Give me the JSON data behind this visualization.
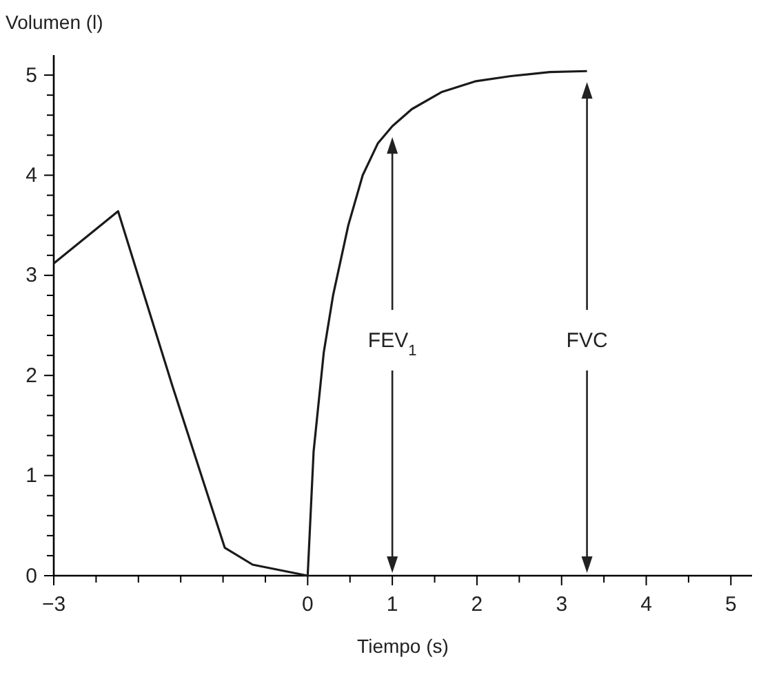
{
  "chart_data": {
    "type": "line",
    "xlabel": "Tiempo (s)",
    "ylabel": "Volumen (l)",
    "x": [
      -3,
      -2.24,
      -1.6,
      -0.98,
      -0.65,
      0,
      0.07,
      0.19,
      0.3,
      0.48,
      0.65,
      0.83,
      1.0,
      1.23,
      1.58,
      1.99,
      2.4,
      2.86,
      3.3
    ],
    "series": [
      {
        "color": "#1a1a1a",
        "values": [
          3.12,
          3.64,
          1.9,
          0.28,
          0.11,
          0,
          1.24,
          2.23,
          2.8,
          3.5,
          4.0,
          4.32,
          4.49,
          4.66,
          4.83,
          4.94,
          4.99,
          5.03,
          5.04
        ]
      }
    ],
    "xlim": [
      -3,
      5.25
    ],
    "xticks": [
      -3,
      {
        "value": -2.5,
        "label": null
      },
      {
        "value": -2,
        "label": null
      },
      {
        "value": -1.5,
        "label": null
      },
      {
        "value": -1,
        "label": null
      },
      {
        "value": -0.5,
        "label": null
      },
      0,
      {
        "value": 0.5,
        "label": null
      },
      1,
      {
        "value": 1.5,
        "label": null
      },
      2,
      {
        "value": 2.5,
        "label": null
      },
      3,
      {
        "value": 3.5,
        "label": null
      },
      4,
      {
        "value": 4.5,
        "label": null
      },
      5
    ],
    "ylim": [
      0,
      5.2
    ],
    "yticks": [
      0,
      {
        "value": 0.2,
        "label": null
      },
      {
        "value": 0.4,
        "label": null
      },
      {
        "value": 0.6,
        "label": null
      },
      {
        "value": 0.8,
        "label": null
      },
      1,
      {
        "value": 1.2,
        "label": null
      },
      {
        "value": 1.4,
        "label": null
      },
      {
        "value": 1.6,
        "label": null
      },
      {
        "value": 1.8,
        "label": null
      },
      2,
      {
        "value": 2.2,
        "label": null
      },
      {
        "value": 2.4,
        "label": null
      },
      {
        "value": 2.6,
        "label": null
      },
      {
        "value": 2.8,
        "label": null
      },
      3,
      {
        "value": 3.2,
        "label": null
      },
      {
        "value": 3.4,
        "label": null
      },
      {
        "value": 3.6,
        "label": null
      },
      {
        "value": 3.8,
        "label": null
      },
      4,
      {
        "value": 4.2,
        "label": null
      },
      {
        "value": 4.4,
        "label": null
      },
      {
        "value": 4.6,
        "label": null
      },
      {
        "value": 4.8,
        "label": null
      },
      5
    ],
    "ref_lines": [
      {
        "axis": "x",
        "value": 1,
        "label": "FEV$_{1}$"
      },
      {
        "axis": "x",
        "value": 3.3,
        "label": "FVC"
      }
    ],
    "marker": "none",
    "line_style": "solid",
    "grid": false
  }
}
